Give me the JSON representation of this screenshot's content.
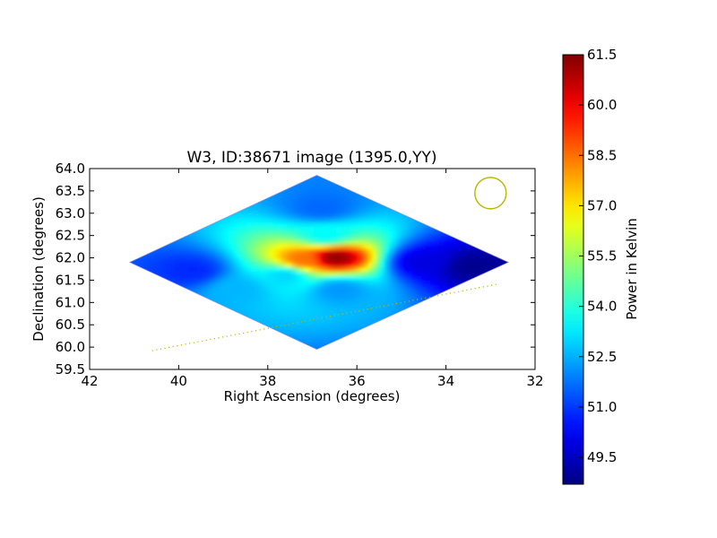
{
  "chart_data": {
    "type": "heatmap",
    "title": "W3, ID:38671 image (1395.0,YY)",
    "xlabel": "Right Ascension (degrees)",
    "ylabel": "Declination (degrees)",
    "xlim": [
      42,
      32
    ],
    "ylim": [
      59.5,
      64.0
    ],
    "x_inverted": true,
    "x_ticks": [
      42,
      40,
      38,
      36,
      34,
      32
    ],
    "x_tick_labels": [
      "42",
      "40",
      "38",
      "36",
      "34",
      "32"
    ],
    "y_ticks": [
      59.5,
      60.0,
      60.5,
      61.0,
      61.5,
      62.0,
      62.5,
      63.0,
      63.5,
      64.0
    ],
    "y_tick_labels": [
      "59.5",
      "60.0",
      "60.5",
      "61.0",
      "61.5",
      "62.0",
      "62.5",
      "63.0",
      "63.5",
      "64.0"
    ],
    "colormap": "jet",
    "colorbar": {
      "label": "Power in Kelvin",
      "range": [
        48.7,
        61.5
      ],
      "ticks": [
        49.5,
        51.0,
        52.5,
        54.0,
        55.5,
        57.0,
        58.5,
        60.0,
        61.5
      ],
      "tick_labels": [
        "49.5",
        "51.0",
        "52.5",
        "54.0",
        "55.5",
        "57.0",
        "58.5",
        "60.0",
        "61.5"
      ]
    },
    "coverage_region": {
      "shape": "diamond",
      "vertices_ra_dec": [
        [
          36.9,
          63.85
        ],
        [
          32.6,
          61.9
        ],
        [
          36.9,
          59.95
        ],
        [
          41.1,
          61.9
        ]
      ]
    },
    "features": [
      {
        "ra": 36.5,
        "dec": 62.0,
        "value": 61.3
      },
      {
        "ra": 37.2,
        "dec": 61.95,
        "value": 58.5
      },
      {
        "ra": 36.7,
        "dec": 62.5,
        "value": 53.5
      },
      {
        "ra": 37.6,
        "dec": 61.6,
        "value": 53.0
      },
      {
        "ra": 38.7,
        "dec": 61.3,
        "value": 52.6
      },
      {
        "ra": 36.4,
        "dec": 61.3,
        "value": 52.2
      },
      {
        "ra": 36.8,
        "dec": 63.1,
        "value": 51.6
      },
      {
        "ra": 39.7,
        "dec": 61.7,
        "value": 50.8
      },
      {
        "ra": 34.5,
        "dec": 61.9,
        "value": 49.9
      },
      {
        "ra": 33.4,
        "dec": 61.8,
        "value": 48.9
      }
    ],
    "background_value": 49.5,
    "beam_marker": {
      "ra": 33.0,
      "dec": 63.45,
      "color": "#b5b800"
    },
    "track_line": {
      "points": [
        [
          40.6,
          59.92
        ],
        [
          32.8,
          61.42
        ]
      ],
      "style": "dotted",
      "color": "#b5b800"
    }
  }
}
